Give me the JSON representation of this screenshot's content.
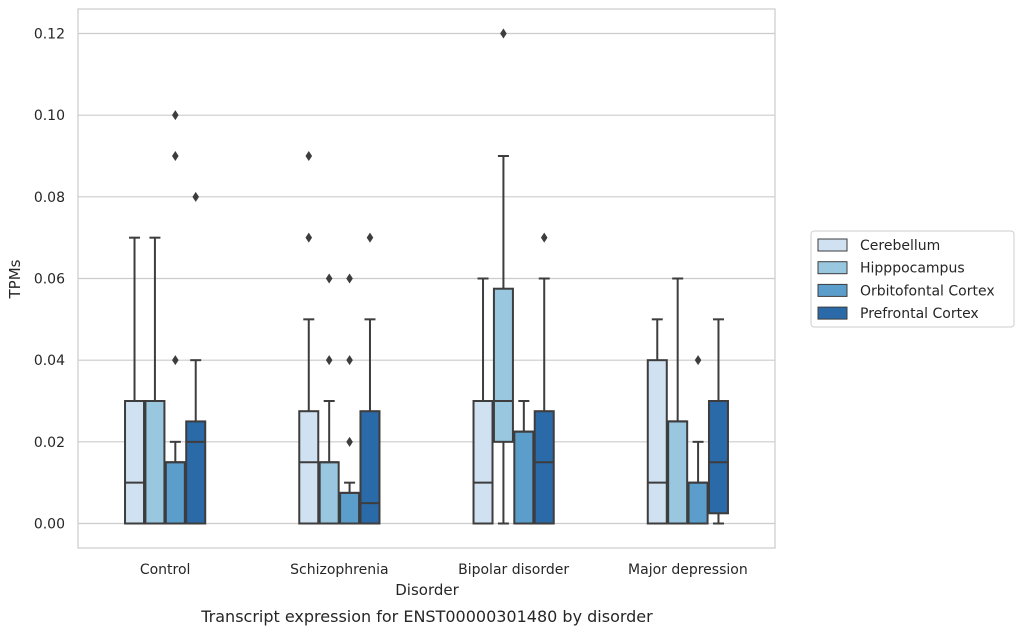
{
  "chart_data": {
    "type": "box",
    "title": "",
    "caption": "Transcript expression for ENST00000301480 by disorder",
    "xlabel": "Disorder",
    "ylabel": "TPMs",
    "ylim": [
      -0.006,
      0.126
    ],
    "yticks": [
      0.0,
      0.02,
      0.04,
      0.06,
      0.08,
      0.1,
      0.12
    ],
    "ytick_labels": [
      "0.00",
      "0.02",
      "0.04",
      "0.06",
      "0.08",
      "0.10",
      "0.12"
    ],
    "grid": "horizontal",
    "legend_position": "right",
    "categories": [
      "Control",
      "Schizophrenia",
      "Bipolar disorder",
      "Major depression"
    ],
    "series": [
      {
        "name": "Cerebellum",
        "color": "#d0e1f2",
        "boxes": [
          {
            "q1": 0.0,
            "median": 0.01,
            "q3": 0.03,
            "whislo": 0.0,
            "whishi": 0.07,
            "fliers": []
          },
          {
            "q1": 0.0,
            "median": 0.015,
            "q3": 0.0275,
            "whislo": 0.0,
            "whishi": 0.05,
            "fliers": [
              0.07,
              0.09
            ]
          },
          {
            "q1": 0.0,
            "median": 0.01,
            "q3": 0.03,
            "whislo": 0.0,
            "whishi": 0.06,
            "fliers": []
          },
          {
            "q1": 0.0,
            "median": 0.01,
            "q3": 0.04,
            "whislo": 0.0,
            "whishi": 0.05,
            "fliers": []
          }
        ]
      },
      {
        "name": "Hipppocampus",
        "color": "#9ac7e0",
        "boxes": [
          {
            "q1": 0.0,
            "median": 0.03,
            "q3": 0.03,
            "whislo": 0.0,
            "whishi": 0.07,
            "fliers": []
          },
          {
            "q1": 0.0,
            "median": 0.015,
            "q3": 0.015,
            "whislo": 0.0,
            "whishi": 0.03,
            "fliers": [
              0.04,
              0.06
            ]
          },
          {
            "q1": 0.02,
            "median": 0.03,
            "q3": 0.0575,
            "whislo": 0.0,
            "whishi": 0.09,
            "fliers": [
              0.12
            ]
          },
          {
            "q1": 0.0,
            "median": 0.025,
            "q3": 0.025,
            "whislo": 0.0,
            "whishi": 0.06,
            "fliers": []
          }
        ]
      },
      {
        "name": "Orbitofontal Cortex",
        "color": "#5b9ecc",
        "boxes": [
          {
            "q1": 0.0,
            "median": 0.015,
            "q3": 0.015,
            "whislo": 0.0,
            "whishi": 0.02,
            "fliers": [
              0.04,
              0.09,
              0.1
            ]
          },
          {
            "q1": 0.0,
            "median": 0.0075,
            "q3": 0.0075,
            "whislo": 0.0,
            "whishi": 0.01,
            "fliers": [
              0.02,
              0.04,
              0.06
            ]
          },
          {
            "q1": 0.0,
            "median": 0.0225,
            "q3": 0.0225,
            "whislo": 0.0,
            "whishi": 0.03,
            "fliers": []
          },
          {
            "q1": 0.0,
            "median": 0.01,
            "q3": 0.01,
            "whislo": 0.0,
            "whishi": 0.02,
            "fliers": [
              0.04
            ]
          }
        ]
      },
      {
        "name": "Prefrontal Cortex",
        "color": "#2a6aa8",
        "boxes": [
          {
            "q1": 0.0,
            "median": 0.02,
            "q3": 0.025,
            "whislo": 0.0,
            "whishi": 0.04,
            "fliers": [
              0.08
            ]
          },
          {
            "q1": 0.0,
            "median": 0.005,
            "q3": 0.0275,
            "whislo": 0.0,
            "whishi": 0.05,
            "fliers": [
              0.07
            ]
          },
          {
            "q1": 0.0,
            "median": 0.015,
            "q3": 0.0275,
            "whislo": 0.0,
            "whishi": 0.06,
            "fliers": [
              0.07
            ]
          },
          {
            "q1": 0.0025,
            "median": 0.015,
            "q3": 0.03,
            "whislo": 0.0,
            "whishi": 0.05,
            "fliers": []
          }
        ]
      }
    ]
  }
}
